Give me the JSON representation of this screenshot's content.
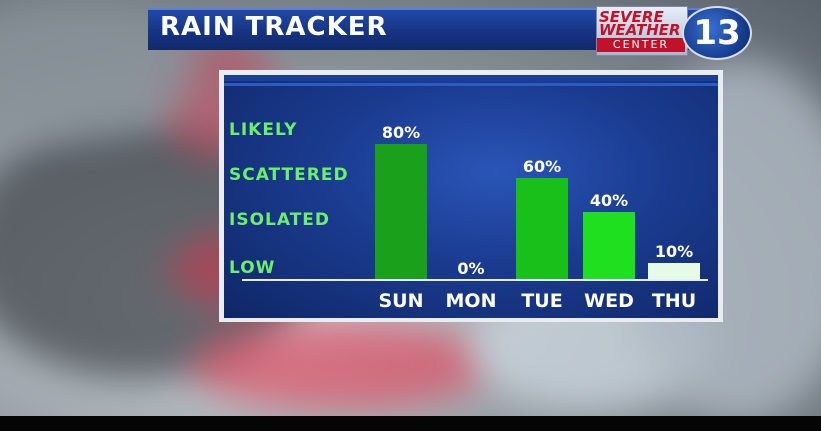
{
  "header": {
    "title": "RAIN TRACKER"
  },
  "logo": {
    "line1": "SEVERE",
    "line2": "WEATHER",
    "line3": "CENTER",
    "channel": "13"
  },
  "chart_data": {
    "type": "bar",
    "categories": [
      "SUN",
      "MON",
      "TUE",
      "WED",
      "THU"
    ],
    "values": [
      80,
      0,
      60,
      40,
      10
    ],
    "value_labels": [
      "80%",
      "0%",
      "60%",
      "40%",
      "10%"
    ],
    "level_labels": [
      "LIKELY",
      "SCATTERED",
      "ISOLATED",
      "LOW"
    ],
    "ylim": [
      0,
      100
    ],
    "grid": false,
    "bar_colors": [
      "#1aa01a",
      "#1aa01a",
      "#19c019",
      "#1fe01f",
      "#e6fbe6"
    ]
  },
  "colors": {
    "panel_blue": "#1a3b8f",
    "title_blue": "#16327f",
    "level_green": "#6cf06c"
  }
}
